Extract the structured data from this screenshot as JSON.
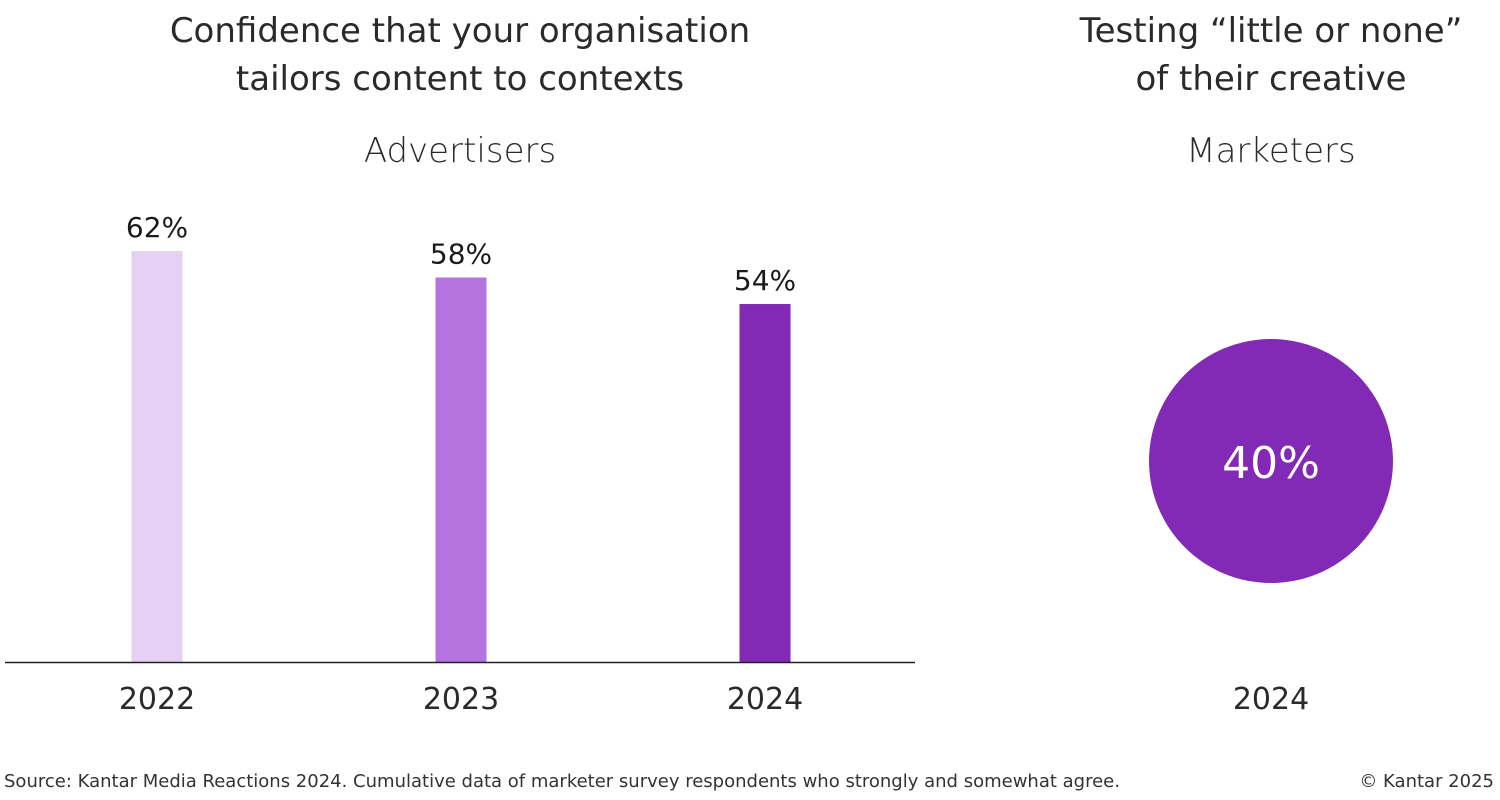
{
  "chart_data": [
    {
      "type": "bar",
      "title_lines": [
        "Confidence that your organisation",
        "tailors content to contexts"
      ],
      "subtitle": "Advertisers",
      "categories": [
        "2022",
        "2023",
        "2024"
      ],
      "values": [
        62,
        58,
        54
      ],
      "data_labels": [
        "62%",
        "58%",
        "54%"
      ],
      "colors": [
        "#e6d0f3",
        "#b573e0",
        "#8229b6"
      ],
      "ylim": [
        0,
        62
      ],
      "unit": "%",
      "grid": false
    },
    {
      "type": "circle",
      "title_lines": [
        "Testing “little or none”",
        "of their creative"
      ],
      "subtitle": "Marketers",
      "category": "2024",
      "value": 40,
      "data_label": "40%",
      "color": "#8229b6"
    }
  ],
  "footer": {
    "source": "Source: Kantar Media Reactions 2024. Cumulative data of marketer survey respondents who strongly and somewhat agree.",
    "copyright": "© Kantar 2025"
  }
}
